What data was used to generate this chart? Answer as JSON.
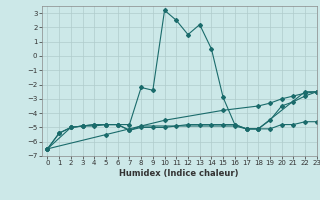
{
  "xlabel": "Humidex (Indice chaleur)",
  "xlim": [
    -0.5,
    23
  ],
  "ylim": [
    -7,
    3.5
  ],
  "yticks": [
    -7,
    -6,
    -5,
    -4,
    -3,
    -2,
    -1,
    0,
    1,
    2,
    3
  ],
  "xticks": [
    0,
    1,
    2,
    3,
    4,
    5,
    6,
    7,
    8,
    9,
    10,
    11,
    12,
    13,
    14,
    15,
    16,
    17,
    18,
    19,
    20,
    21,
    22,
    23
  ],
  "bg_color": "#cce8e8",
  "line_color": "#1a6b6b",
  "grid_color": "#b0cccc",
  "lines": [
    {
      "x": [
        0,
        1,
        2,
        3,
        4,
        5,
        6,
        7,
        8,
        9,
        10,
        11,
        12,
        13,
        14,
        15,
        16,
        17,
        18,
        22,
        23
      ],
      "y": [
        -6.5,
        -5.4,
        -5.0,
        -4.9,
        -4.8,
        -4.8,
        -4.8,
        -4.8,
        -2.2,
        -2.4,
        3.2,
        2.5,
        1.5,
        2.2,
        0.5,
        -2.9,
        -4.8,
        -5.1,
        -5.1,
        -2.5,
        -2.5
      ]
    },
    {
      "x": [
        0,
        1,
        2,
        3,
        4,
        5,
        6,
        7,
        8,
        9,
        10,
        11,
        12,
        13,
        14,
        15,
        16,
        17,
        18,
        19,
        20,
        21,
        22,
        23
      ],
      "y": [
        -6.5,
        -5.4,
        -5.0,
        -4.9,
        -4.8,
        -4.8,
        -4.8,
        -5.2,
        -5.0,
        -5.0,
        -5.0,
        -4.9,
        -4.8,
        -4.8,
        -4.8,
        -4.8,
        -4.8,
        -5.1,
        -5.1,
        -5.1,
        -4.8,
        -4.8,
        -4.6,
        -4.6
      ]
    },
    {
      "x": [
        0,
        5,
        10,
        15,
        18,
        19,
        20,
        21,
        22,
        23
      ],
      "y": [
        -6.5,
        -5.5,
        -4.5,
        -3.8,
        -3.5,
        -3.3,
        -3.0,
        -2.8,
        -2.6,
        -2.5
      ]
    },
    {
      "x": [
        0,
        2,
        3,
        4,
        5,
        6,
        7,
        8,
        16,
        17,
        18,
        19,
        20,
        21,
        22,
        23
      ],
      "y": [
        -6.5,
        -5.0,
        -4.9,
        -4.9,
        -4.8,
        -4.8,
        -5.2,
        -4.9,
        -4.9,
        -5.1,
        -5.1,
        -4.5,
        -3.5,
        -3.2,
        -2.8,
        -2.5
      ]
    }
  ]
}
